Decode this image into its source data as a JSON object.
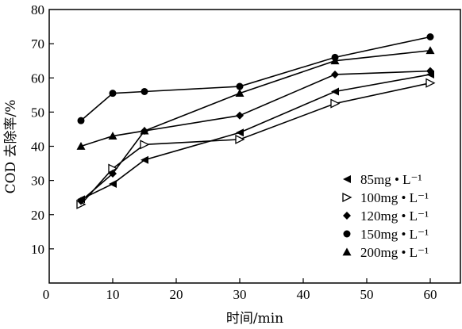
{
  "chart_data": {
    "type": "line",
    "xlabel": "时间/min",
    "ylabel": "COD 去除率/%",
    "xlim": [
      0,
      65
    ],
    "ylim": [
      0,
      80
    ],
    "xticks": [
      0,
      10,
      20,
      30,
      40,
      50,
      60
    ],
    "yticks": [
      10,
      20,
      30,
      40,
      50,
      60,
      70,
      80
    ],
    "grid": false,
    "legend_position": "bottom-right",
    "series": [
      {
        "name": "85mg • L⁻¹",
        "marker": "triangle-left",
        "x": [
          5,
          10,
          15,
          30,
          45,
          60
        ],
        "y": [
          24.5,
          29,
          36,
          44,
          56,
          61
        ]
      },
      {
        "name": "100mg • L⁻¹",
        "marker": "triangle-right-open",
        "x": [
          5,
          10,
          15,
          30,
          45,
          60
        ],
        "y": [
          23,
          33.5,
          40.5,
          42,
          52.5,
          58.5
        ]
      },
      {
        "name": "120mg • L⁻¹",
        "marker": "diamond",
        "x": [
          5,
          10,
          15,
          30,
          45,
          60
        ],
        "y": [
          24,
          32,
          44.5,
          49,
          61,
          62
        ]
      },
      {
        "name": "150mg • L⁻¹",
        "marker": "circle",
        "x": [
          5,
          10,
          15,
          30,
          45,
          60
        ],
        "y": [
          47.5,
          55.5,
          56,
          57.5,
          66,
          72
        ]
      },
      {
        "name": "200mg • L⁻¹",
        "marker": "triangle-up",
        "x": [
          5,
          10,
          15,
          30,
          45,
          60
        ],
        "y": [
          40,
          43,
          44.5,
          55.5,
          65,
          68
        ]
      }
    ]
  }
}
